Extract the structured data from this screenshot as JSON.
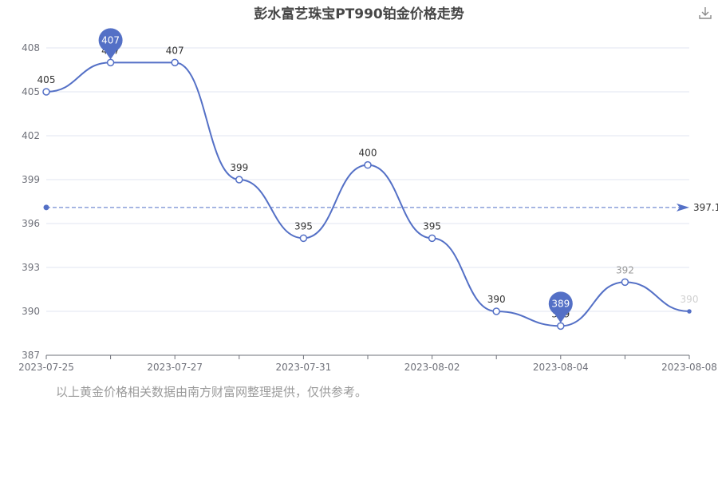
{
  "chart_data": {
    "type": "line",
    "title": "彭水富艺珠宝PT990铂金价格走势",
    "x": [
      "2023-07-25",
      "2023-07-26",
      "2023-07-27",
      "2023-07-28",
      "2023-07-31",
      "2023-08-01",
      "2023-08-02",
      "2023-08-03",
      "2023-08-04",
      "2023-08-07",
      "2023-08-08"
    ],
    "x_tick_labels": [
      "2023-07-25",
      "2023-07-27",
      "2023-07-31",
      "2023-08-02",
      "2023-08-04",
      "2023-08-08"
    ],
    "series": [
      {
        "values": [
          405,
          407,
          407,
          399,
          395,
          400,
          395,
          390,
          389,
          392,
          390
        ]
      }
    ],
    "ylim": [
      387,
      408
    ],
    "y_ticks": [
      387,
      390,
      393,
      396,
      399,
      402,
      405,
      408
    ],
    "max_marker": {
      "label": "407",
      "category": "2023-07-26"
    },
    "min_marker": {
      "label": "389",
      "category": "2023-08-04"
    },
    "average_line": {
      "label": "397.1",
      "value": 397.1
    },
    "grid": true,
    "colors": {
      "line": "#5470c6",
      "grid": "#e0e6f1",
      "axis": "#6e7079",
      "label": "#333333"
    }
  },
  "footnote": "以上黄金价格相关数据由南方财富网整理提供，仅供参考。",
  "icons": {
    "download": "download-icon"
  }
}
